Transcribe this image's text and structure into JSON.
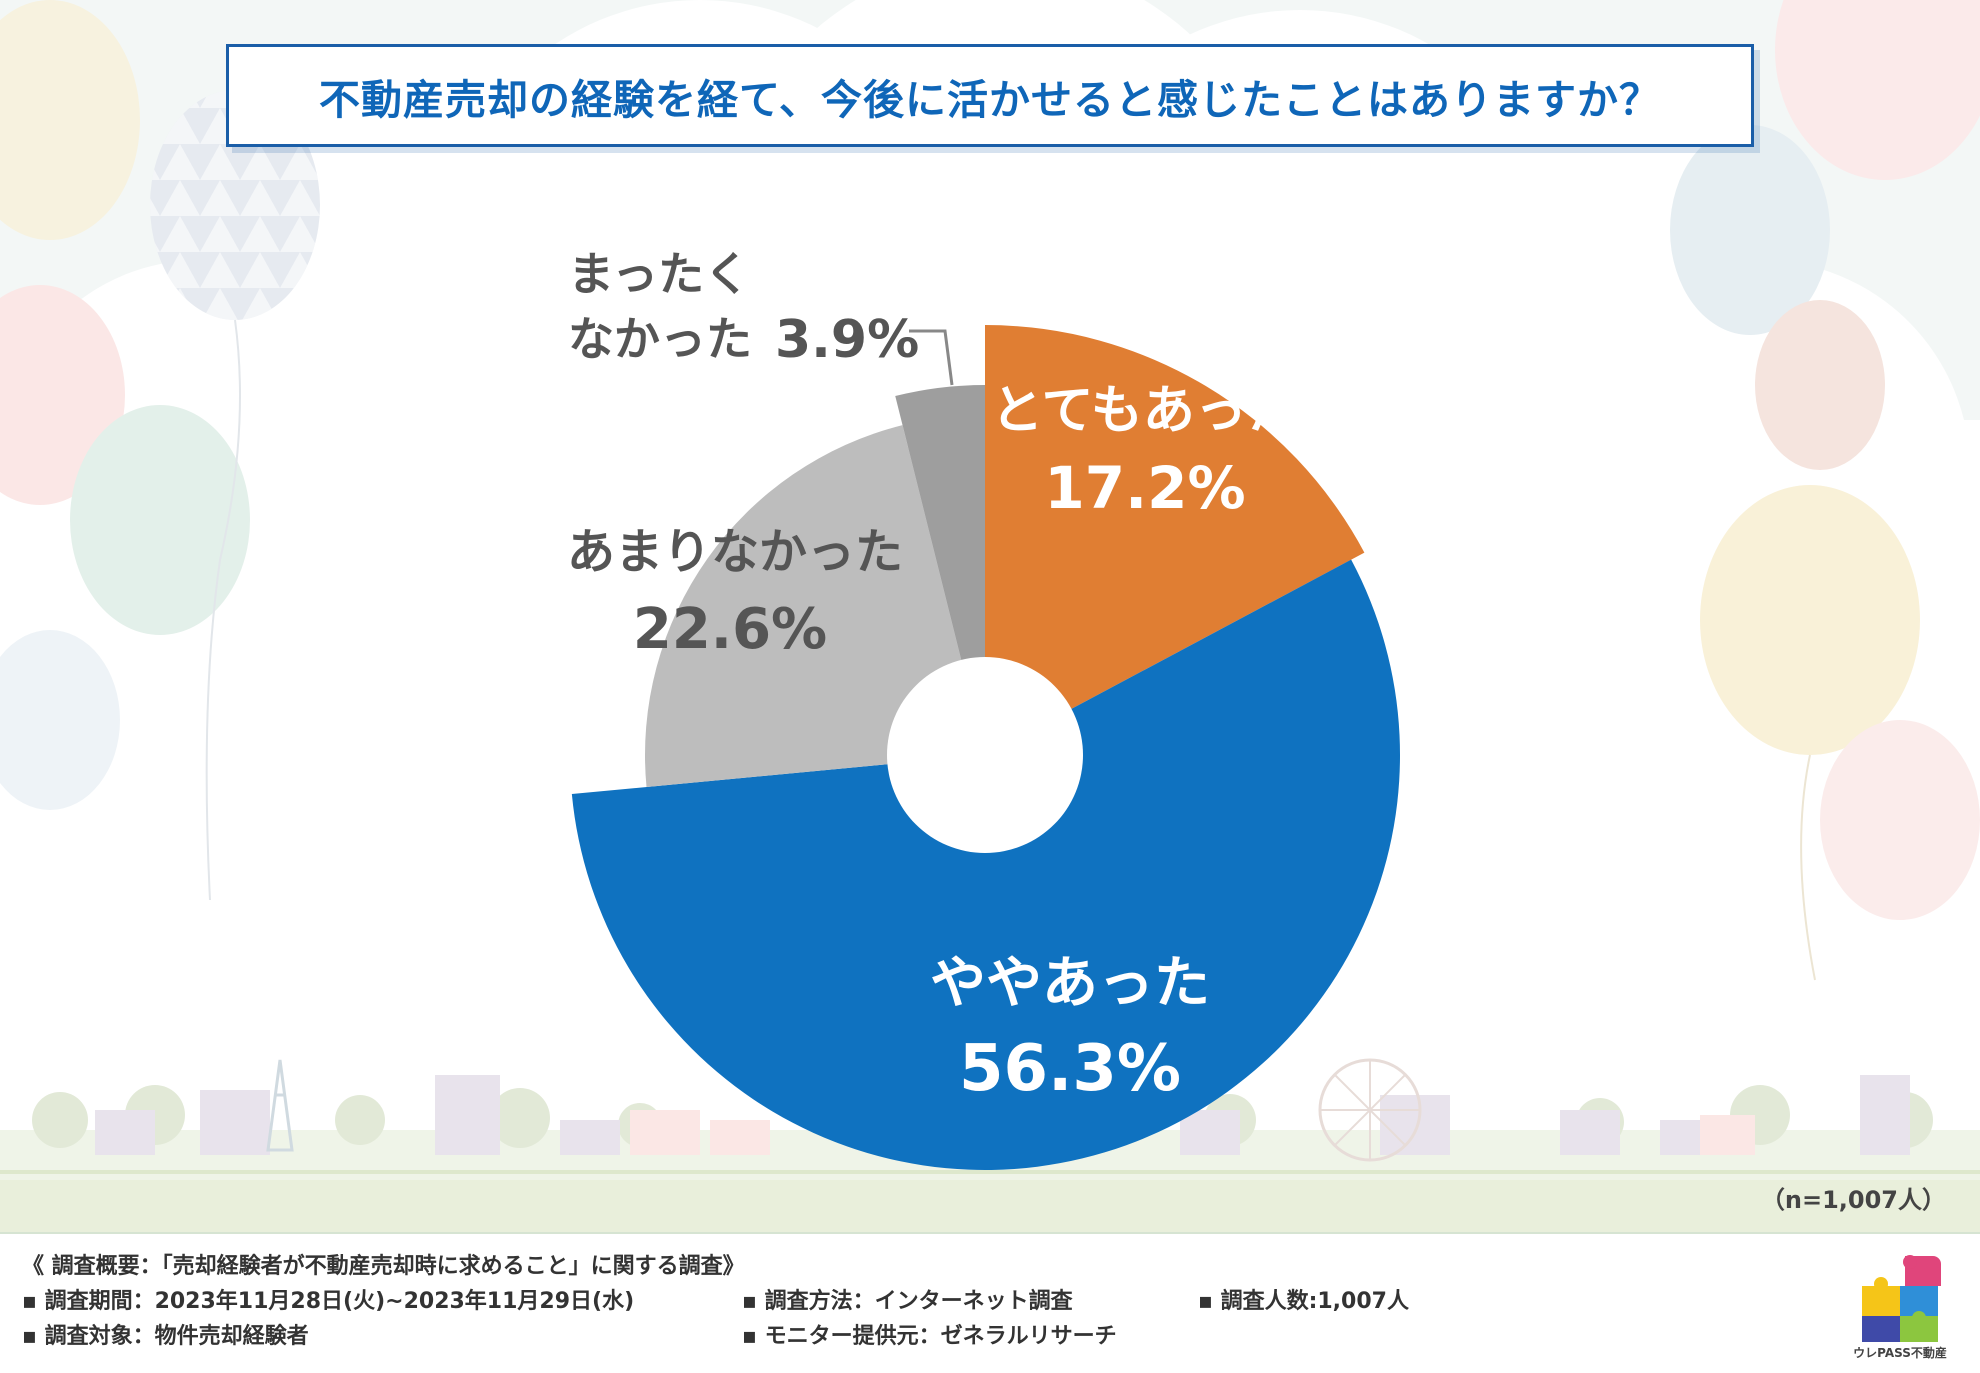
{
  "title": "不動産売却の経験を経て、今後に活かせると感じたことはありますか？",
  "sample_size": "（n=1,007人）",
  "colors": {
    "very": "#e07e33",
    "somewhat": "#0f72c0",
    "little": "#bdbdbd",
    "none": "#9e9e9e",
    "title": "#0f66b8"
  },
  "chart_data": {
    "type": "pie",
    "title": "不動産売却の経験を経て、今後に活かせると感じたことはありますか？",
    "unit": "%",
    "donut": true,
    "n": 1007,
    "slices": [
      {
        "key": "very",
        "label": "とてもあった",
        "value": 17.2
      },
      {
        "key": "somewhat",
        "label": "ややあった",
        "value": 56.3
      },
      {
        "key": "little",
        "label": "あまりなかった",
        "value": 22.6
      },
      {
        "key": "none",
        "label": "まったくなかった",
        "value": 3.9
      }
    ],
    "labels": {
      "very": {
        "line1": "とてもあった",
        "pct": "17.2%"
      },
      "somewhat": {
        "line1": "ややあった",
        "pct": "56.3%"
      },
      "little": {
        "line1": "あまりなかった",
        "pct": "22.6%"
      },
      "none": {
        "line1": "まったく",
        "line2": "なかった",
        "pct": "3.9%"
      }
    }
  },
  "footer": {
    "summary": "《 調査概要：「売却経験者が不動産売却時に求めること」に関する調査》",
    "period": "▪ 調査期間：2023年11月28日(火)~2023年11月29日(水)",
    "target": "▪ 調査対象：物件売却経験者",
    "method": "▪ 調査方法：インターネット調査",
    "provider": "▪ モニター提供元：ゼネラルリサーチ",
    "count": "▪ 調査人数:1,007人"
  },
  "logo_text": "ウレPASS不動産"
}
